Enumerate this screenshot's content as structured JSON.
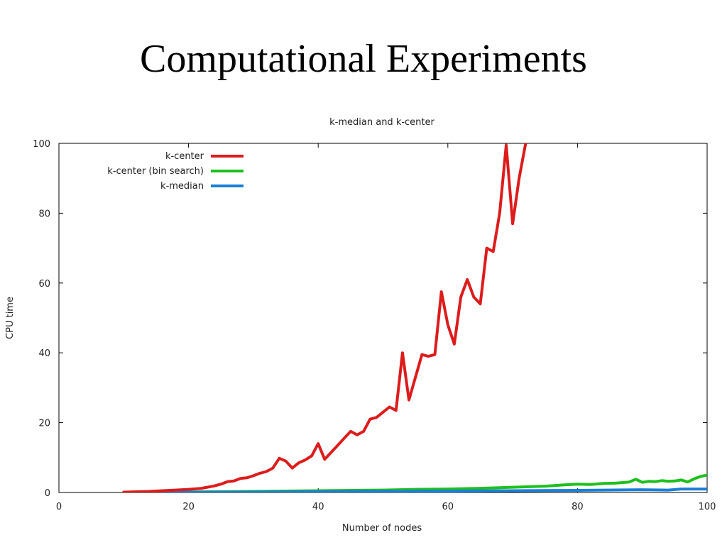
{
  "slide": {
    "title": "Computational Experiments"
  },
  "chart_data": {
    "type": "line",
    "title": "k-median and k-center",
    "xlabel": "Number of nodes",
    "ylabel": "CPU time",
    "xlim": [
      0,
      100
    ],
    "ylim": [
      0,
      100
    ],
    "xticks": [
      0,
      20,
      40,
      60,
      80,
      100
    ],
    "yticks": [
      0,
      20,
      40,
      60,
      80,
      100
    ],
    "grid": false,
    "legend_position": "top-left",
    "series": [
      {
        "name": "k-center",
        "color": "#dd1c1c",
        "x": [
          10,
          12,
          14,
          16,
          18,
          20,
          22,
          24,
          25,
          26,
          27,
          28,
          29,
          30,
          31,
          32,
          33,
          34,
          35,
          36,
          37,
          38,
          39,
          40,
          41,
          42,
          43,
          44,
          45,
          46,
          47,
          48,
          49,
          50,
          51,
          52,
          53,
          54,
          55,
          56,
          57,
          58,
          59,
          60,
          61,
          62,
          63,
          64,
          65,
          66,
          67,
          68,
          69,
          70,
          71,
          72
        ],
        "y": [
          0.1,
          0.2,
          0.3,
          0.5,
          0.7,
          0.9,
          1.2,
          1.9,
          2.4,
          3.1,
          3.3,
          4.0,
          4.2,
          4.8,
          5.5,
          6.0,
          7.0,
          9.8,
          9.0,
          7.0,
          8.5,
          9.3,
          10.5,
          14.0,
          9.5,
          11.5,
          13.5,
          15.5,
          17.5,
          16.5,
          17.5,
          21.0,
          21.5,
          23.0,
          24.5,
          23.5,
          40.0,
          26.5,
          33.0,
          39.5,
          39.0,
          39.5,
          57.5,
          48.0,
          42.5,
          56.0,
          61.0,
          56.0,
          54.0,
          70.0,
          69.0,
          80.0,
          99.5,
          77.0,
          90.0,
          100.0
        ]
      },
      {
        "name": "k-center (bin search)",
        "color": "#1ec01e",
        "x": [
          10,
          20,
          30,
          40,
          50,
          55,
          60,
          65,
          70,
          75,
          78,
          80,
          82,
          84,
          86,
          88,
          89,
          90,
          91,
          92,
          93,
          94,
          95,
          96,
          97,
          98,
          99,
          100
        ],
        "y": [
          0.05,
          0.15,
          0.3,
          0.5,
          0.7,
          0.9,
          1.0,
          1.2,
          1.5,
          1.8,
          2.2,
          2.4,
          2.3,
          2.6,
          2.7,
          3.0,
          3.8,
          2.9,
          3.2,
          3.1,
          3.4,
          3.2,
          3.3,
          3.6,
          3.0,
          3.9,
          4.6,
          5.0
        ]
      },
      {
        "name": "k-median",
        "color": "#1a7fd6",
        "x": [
          10,
          20,
          30,
          40,
          50,
          60,
          70,
          80,
          90,
          94,
          96,
          100
        ],
        "y": [
          0.0,
          0.05,
          0.1,
          0.2,
          0.3,
          0.4,
          0.5,
          0.6,
          0.8,
          0.7,
          1.0,
          1.0
        ]
      }
    ]
  }
}
